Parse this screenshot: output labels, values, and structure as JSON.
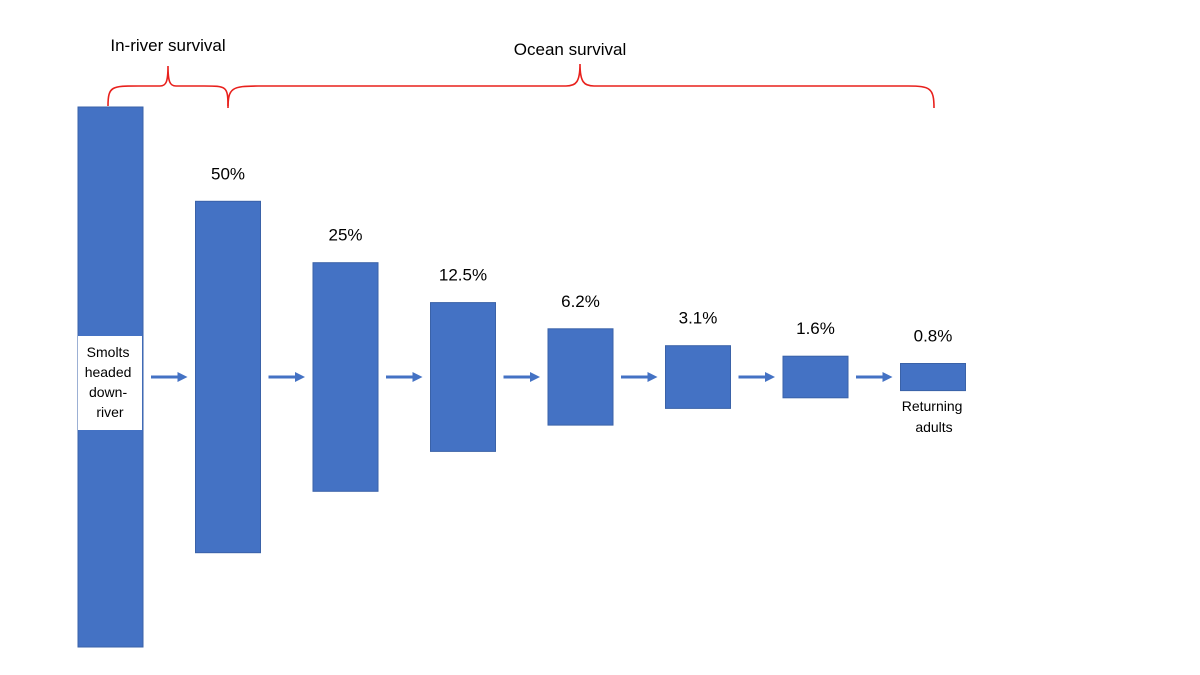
{
  "brackets": {
    "in_river": "In-river survival",
    "ocean": "Ocean survival"
  },
  "start_label": [
    "Smolts",
    "headed",
    "down-",
    "river"
  ],
  "end_label": [
    "Returning",
    "adults"
  ],
  "chart_data": {
    "type": "bar",
    "categories": [
      "Smolts headed down-river",
      "50%",
      "25%",
      "12.5%",
      "6.2%",
      "3.1%",
      "1.6%",
      "0.8%"
    ],
    "values": [
      100,
      50,
      25,
      12.5,
      6.2,
      3.1,
      1.6,
      0.8
    ],
    "value_labels": [
      "",
      "50%",
      "25%",
      "12.5%",
      "6.2%",
      "3.1%",
      "1.6%",
      "0.8%"
    ],
    "title": "",
    "xlabel": "",
    "ylabel": ""
  },
  "colors": {
    "bar": "#4472c4",
    "arrow": "#4472c4",
    "bracket": "#e8201c"
  }
}
